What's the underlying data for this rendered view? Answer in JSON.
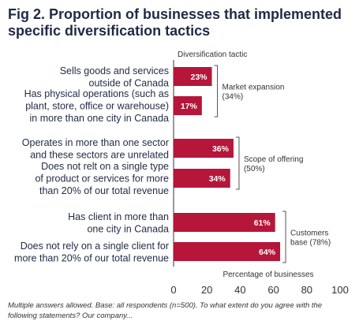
{
  "chart_data": {
    "type": "bar",
    "orientation": "horizontal",
    "title": "Fig 2. Proportion of businesses that implemented specific diversification tactics",
    "category_axis_label": "Diversification tactic",
    "xlabel": "Percentage of businesses",
    "xlim": [
      0,
      100
    ],
    "xticks": [
      0,
      20,
      40,
      60,
      80,
      100
    ],
    "bar_color": "#b5163a",
    "grid": false,
    "categories": [
      [
        "Sells goods and services",
        "outside of Canada"
      ],
      [
        "Has physical operations (such as",
        "plant, store, office or warehouse)",
        "in more than one city in Canada"
      ],
      [
        "Operates in more than one sector",
        "and these sectors are unrelated"
      ],
      [
        "Does not relt on a single type",
        "of product or services for more",
        "than 20% of our total revenue"
      ],
      [
        "Has client in more than",
        "one city in Canada"
      ],
      [
        "Does not rely on a single client for",
        "more than 20% of our total revenue"
      ]
    ],
    "values": [
      23,
      17,
      36,
      34,
      61,
      64
    ],
    "value_labels": [
      "23%",
      "17%",
      "36%",
      "34%",
      "61%",
      "64%"
    ],
    "groups": [
      {
        "label": [
          "Market expansion",
          "(34%)"
        ],
        "members": [
          0,
          1
        ]
      },
      {
        "label": [
          "Scope of offering",
          "(50%)"
        ],
        "members": [
          2,
          3
        ]
      },
      {
        "label": [
          "Customers",
          "base (78%)"
        ],
        "members": [
          4,
          5
        ]
      }
    ]
  },
  "footnote": "Multiple answers allowed. Base: all respondents (n=500). To what extent do you agree with the following statements? Our company..."
}
